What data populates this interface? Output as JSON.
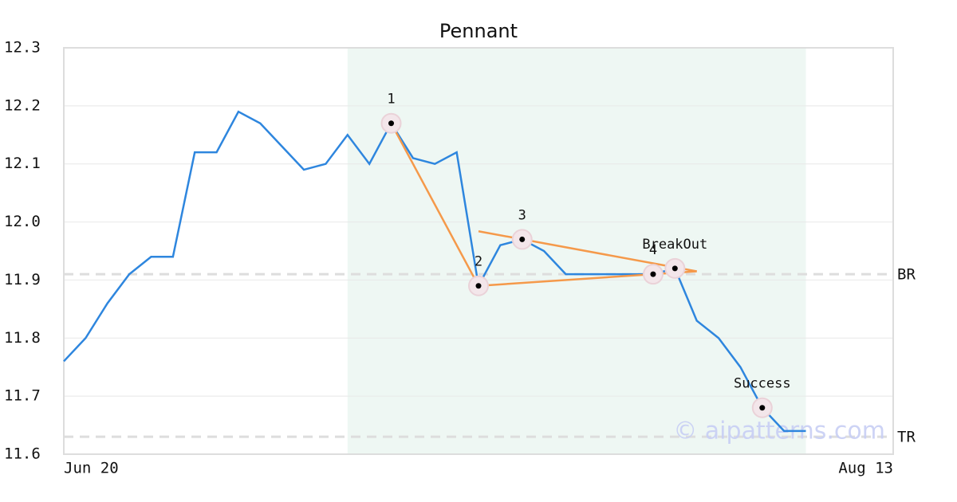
{
  "chart_data": {
    "type": "line",
    "title": "Pennant",
    "categories": [
      "Jun 20",
      null,
      null,
      null,
      null,
      null,
      null,
      null,
      null,
      null,
      null,
      null,
      null,
      null,
      null,
      null,
      null,
      null,
      null,
      null,
      null,
      null,
      null,
      null,
      null,
      null,
      null,
      null,
      null,
      null,
      null,
      null,
      null,
      null,
      null,
      null,
      null,
      null,
      "Aug 13"
    ],
    "series": [
      {
        "color": "#2e86de",
        "values": [
          11.76,
          11.8,
          11.86,
          11.91,
          11.94,
          11.94,
          12.12,
          12.12,
          12.19,
          12.17,
          12.13,
          12.09,
          12.1,
          12.15,
          12.1,
          12.17,
          12.11,
          12.1,
          12.12,
          11.89,
          11.96,
          11.97,
          11.95,
          11.91,
          11.91,
          11.91,
          11.91,
          11.91,
          11.92,
          11.83,
          11.8,
          11.75,
          11.68,
          11.64,
          11.64,
          null,
          null,
          null,
          null
        ]
      }
    ],
    "ylim": [
      11.6,
      12.3
    ],
    "yticks": [
      {
        "value": 11.6,
        "label": "11.6"
      },
      {
        "value": 11.7,
        "label": "11.7"
      },
      {
        "value": 11.8,
        "label": "11.8"
      },
      {
        "value": 11.9,
        "label": "11.9"
      },
      {
        "value": 12.0,
        "label": "12.0"
      },
      {
        "value": 12.1,
        "label": "12.1"
      },
      {
        "value": 12.2,
        "label": "12.2"
      },
      {
        "value": 12.3,
        "label": "12.3"
      }
    ],
    "grid": true,
    "shaded_range": {
      "from": 13,
      "to": 34,
      "color": "#eef7f3"
    },
    "reference_lines": [
      {
        "label": "BR",
        "value": 11.91
      },
      {
        "label": "TR",
        "value": 11.63
      }
    ],
    "trendlines": {
      "color": "#f5994a",
      "lines": [
        {
          "x": [
            15,
            19
          ],
          "y": [
            12.17,
            11.89
          ]
        },
        {
          "x": [
            19,
            29
          ],
          "y": [
            11.984,
            11.915
          ]
        },
        {
          "x": [
            19,
            29
          ],
          "y": [
            11.89,
            11.915
          ]
        }
      ]
    },
    "points": [
      {
        "label": "1",
        "index": 15,
        "value": 12.17
      },
      {
        "label": "2",
        "index": 19,
        "value": 11.89
      },
      {
        "label": "3",
        "index": 21,
        "value": 11.97
      },
      {
        "label": "4",
        "index": 27,
        "value": 11.91
      },
      {
        "label": "BreakOut",
        "index": 28,
        "value": 11.92
      },
      {
        "label": "Success",
        "index": 32,
        "value": 11.68
      }
    ],
    "watermark": "© aipatterns.com"
  }
}
